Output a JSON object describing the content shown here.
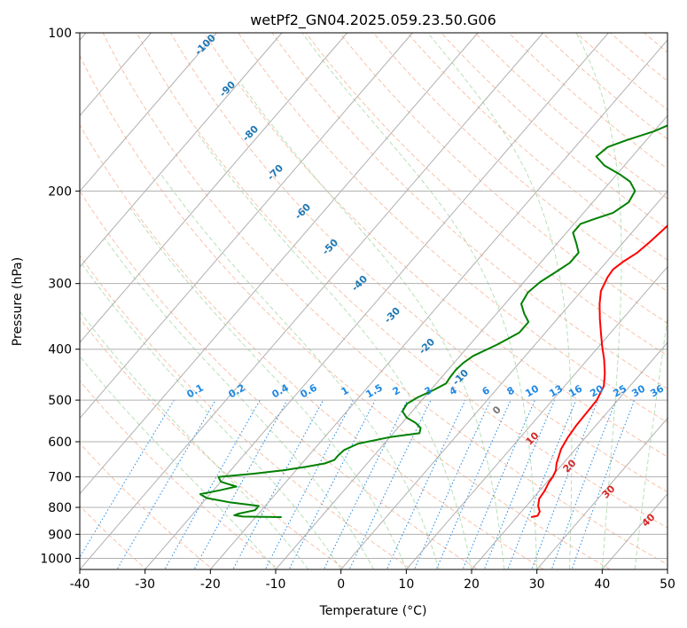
{
  "chart_data": {
    "type": "line",
    "subtype": "skew-t log-p diagram",
    "title": "wetPf2_GN04.2025.059.23.50.G06",
    "xlabel": "Temperature (°C)",
    "ylabel": "Pressure (hPa)",
    "xlim": [
      -40,
      50
    ],
    "ylim": [
      1050,
      100
    ],
    "y_scale": "log",
    "x_ticks": [
      -40,
      -30,
      -20,
      -10,
      0,
      10,
      20,
      30,
      40,
      50
    ],
    "y_ticks": [
      100,
      200,
      300,
      400,
      500,
      600,
      700,
      800,
      900,
      1000
    ],
    "grid": true,
    "series": [
      {
        "color": "#ff0000",
        "points": [
          [
            22.2,
            835
          ],
          [
            23.0,
            830
          ],
          [
            22.8,
            815
          ],
          [
            21.8,
            795
          ],
          [
            21.0,
            770
          ],
          [
            20.8,
            745
          ],
          [
            20.3,
            715
          ],
          [
            20.2,
            700
          ],
          [
            19.8,
            680
          ],
          [
            19.0,
            660
          ],
          [
            17.8,
            620
          ],
          [
            17.3,
            590
          ],
          [
            17.0,
            560
          ],
          [
            16.9,
            530
          ],
          [
            16.8,
            500
          ],
          [
            16.0,
            470
          ],
          [
            14.5,
            445
          ],
          [
            12.5,
            418
          ],
          [
            10.5,
            395
          ],
          [
            8.5,
            372
          ],
          [
            6.5,
            350
          ],
          [
            4.5,
            328
          ],
          [
            3.0,
            310
          ],
          [
            2.2,
            292
          ],
          [
            2.0,
            282
          ],
          [
            2.5,
            273
          ],
          [
            3.5,
            262
          ],
          [
            4.0,
            250
          ],
          [
            4.5,
            235
          ],
          [
            4.8,
            220
          ],
          [
            5.2,
            208
          ],
          [
            5.5,
            198
          ],
          [
            6.0,
            188
          ],
          [
            6.8,
            177
          ],
          [
            7.5,
            168
          ],
          [
            8.0,
            160
          ],
          [
            8.1,
            150
          ],
          [
            7.9,
            140
          ],
          [
            7.6,
            132
          ],
          [
            7.4,
            124
          ],
          [
            7.5,
            116
          ],
          [
            7.7,
            108
          ],
          [
            8.0,
            100
          ]
        ]
      },
      {
        "color": "#008000",
        "points": [
          [
            -16.0,
            835
          ],
          [
            -22.0,
            833
          ],
          [
            -23.5,
            828
          ],
          [
            -23.0,
            822
          ],
          [
            -21.0,
            810
          ],
          [
            -21.0,
            795
          ],
          [
            -26.0,
            782
          ],
          [
            -30.0,
            768
          ],
          [
            -31.5,
            755
          ],
          [
            -29.0,
            742
          ],
          [
            -27.0,
            730
          ],
          [
            -30.0,
            715
          ],
          [
            -31.0,
            700
          ],
          [
            -26.0,
            690
          ],
          [
            -22.0,
            680
          ],
          [
            -19.0,
            670
          ],
          [
            -16.5,
            660
          ],
          [
            -15.5,
            650
          ],
          [
            -15.5,
            638
          ],
          [
            -15.3,
            622
          ],
          [
            -14.0,
            605
          ],
          [
            -10.0,
            588
          ],
          [
            -6.0,
            578
          ],
          [
            -6.5,
            565
          ],
          [
            -8.0,
            552
          ],
          [
            -10.0,
            540
          ],
          [
            -11.5,
            525
          ],
          [
            -11.8,
            508
          ],
          [
            -11.0,
            494
          ],
          [
            -9.5,
            478
          ],
          [
            -8.5,
            465
          ],
          [
            -8.7,
            452
          ],
          [
            -8.8,
            438
          ],
          [
            -8.6,
            425
          ],
          [
            -8.0,
            412
          ],
          [
            -5.8,
            392
          ],
          [
            -4.0,
            372
          ],
          [
            -4.0,
            355
          ],
          [
            -5.8,
            342
          ],
          [
            -7.5,
            328
          ],
          [
            -8.0,
            312
          ],
          [
            -7.5,
            298
          ],
          [
            -6.5,
            286
          ],
          [
            -5.5,
            274
          ],
          [
            -5.5,
            262
          ],
          [
            -7.0,
            252
          ],
          [
            -9.0,
            240
          ],
          [
            -9.0,
            231
          ],
          [
            -7.5,
            226
          ],
          [
            -5.5,
            220
          ],
          [
            -4.5,
            210
          ],
          [
            -5.0,
            200
          ],
          [
            -7.0,
            192
          ],
          [
            -9.5,
            186
          ],
          [
            -13.0,
            179
          ],
          [
            -15.5,
            172
          ],
          [
            -15.0,
            165
          ],
          [
            -13.0,
            160
          ],
          [
            -10.0,
            154
          ],
          [
            -8.0,
            148
          ],
          [
            -6.0,
            141
          ],
          [
            -5.0,
            134
          ],
          [
            -4.0,
            127
          ],
          [
            -2.5,
            120
          ],
          [
            0.0,
            114
          ],
          [
            1.5,
            108
          ],
          [
            2.5,
            102
          ]
        ]
      }
    ],
    "dry_adiabat_labels": [
      "-100",
      "-90",
      "-80",
      "-70",
      "-60",
      "-50",
      "-40",
      "-30",
      "-20",
      "-10"
    ],
    "moist_adiabat_labels": [
      "0",
      "10",
      "20",
      "30",
      "40"
    ],
    "mixing_ratio_labels": [
      "0.1",
      "0.2",
      "0.4",
      "0.6",
      "1",
      "1.5",
      "2",
      "3",
      "4",
      "6",
      "8",
      "10",
      "13",
      "16",
      "20",
      "25",
      "30",
      "36"
    ]
  }
}
